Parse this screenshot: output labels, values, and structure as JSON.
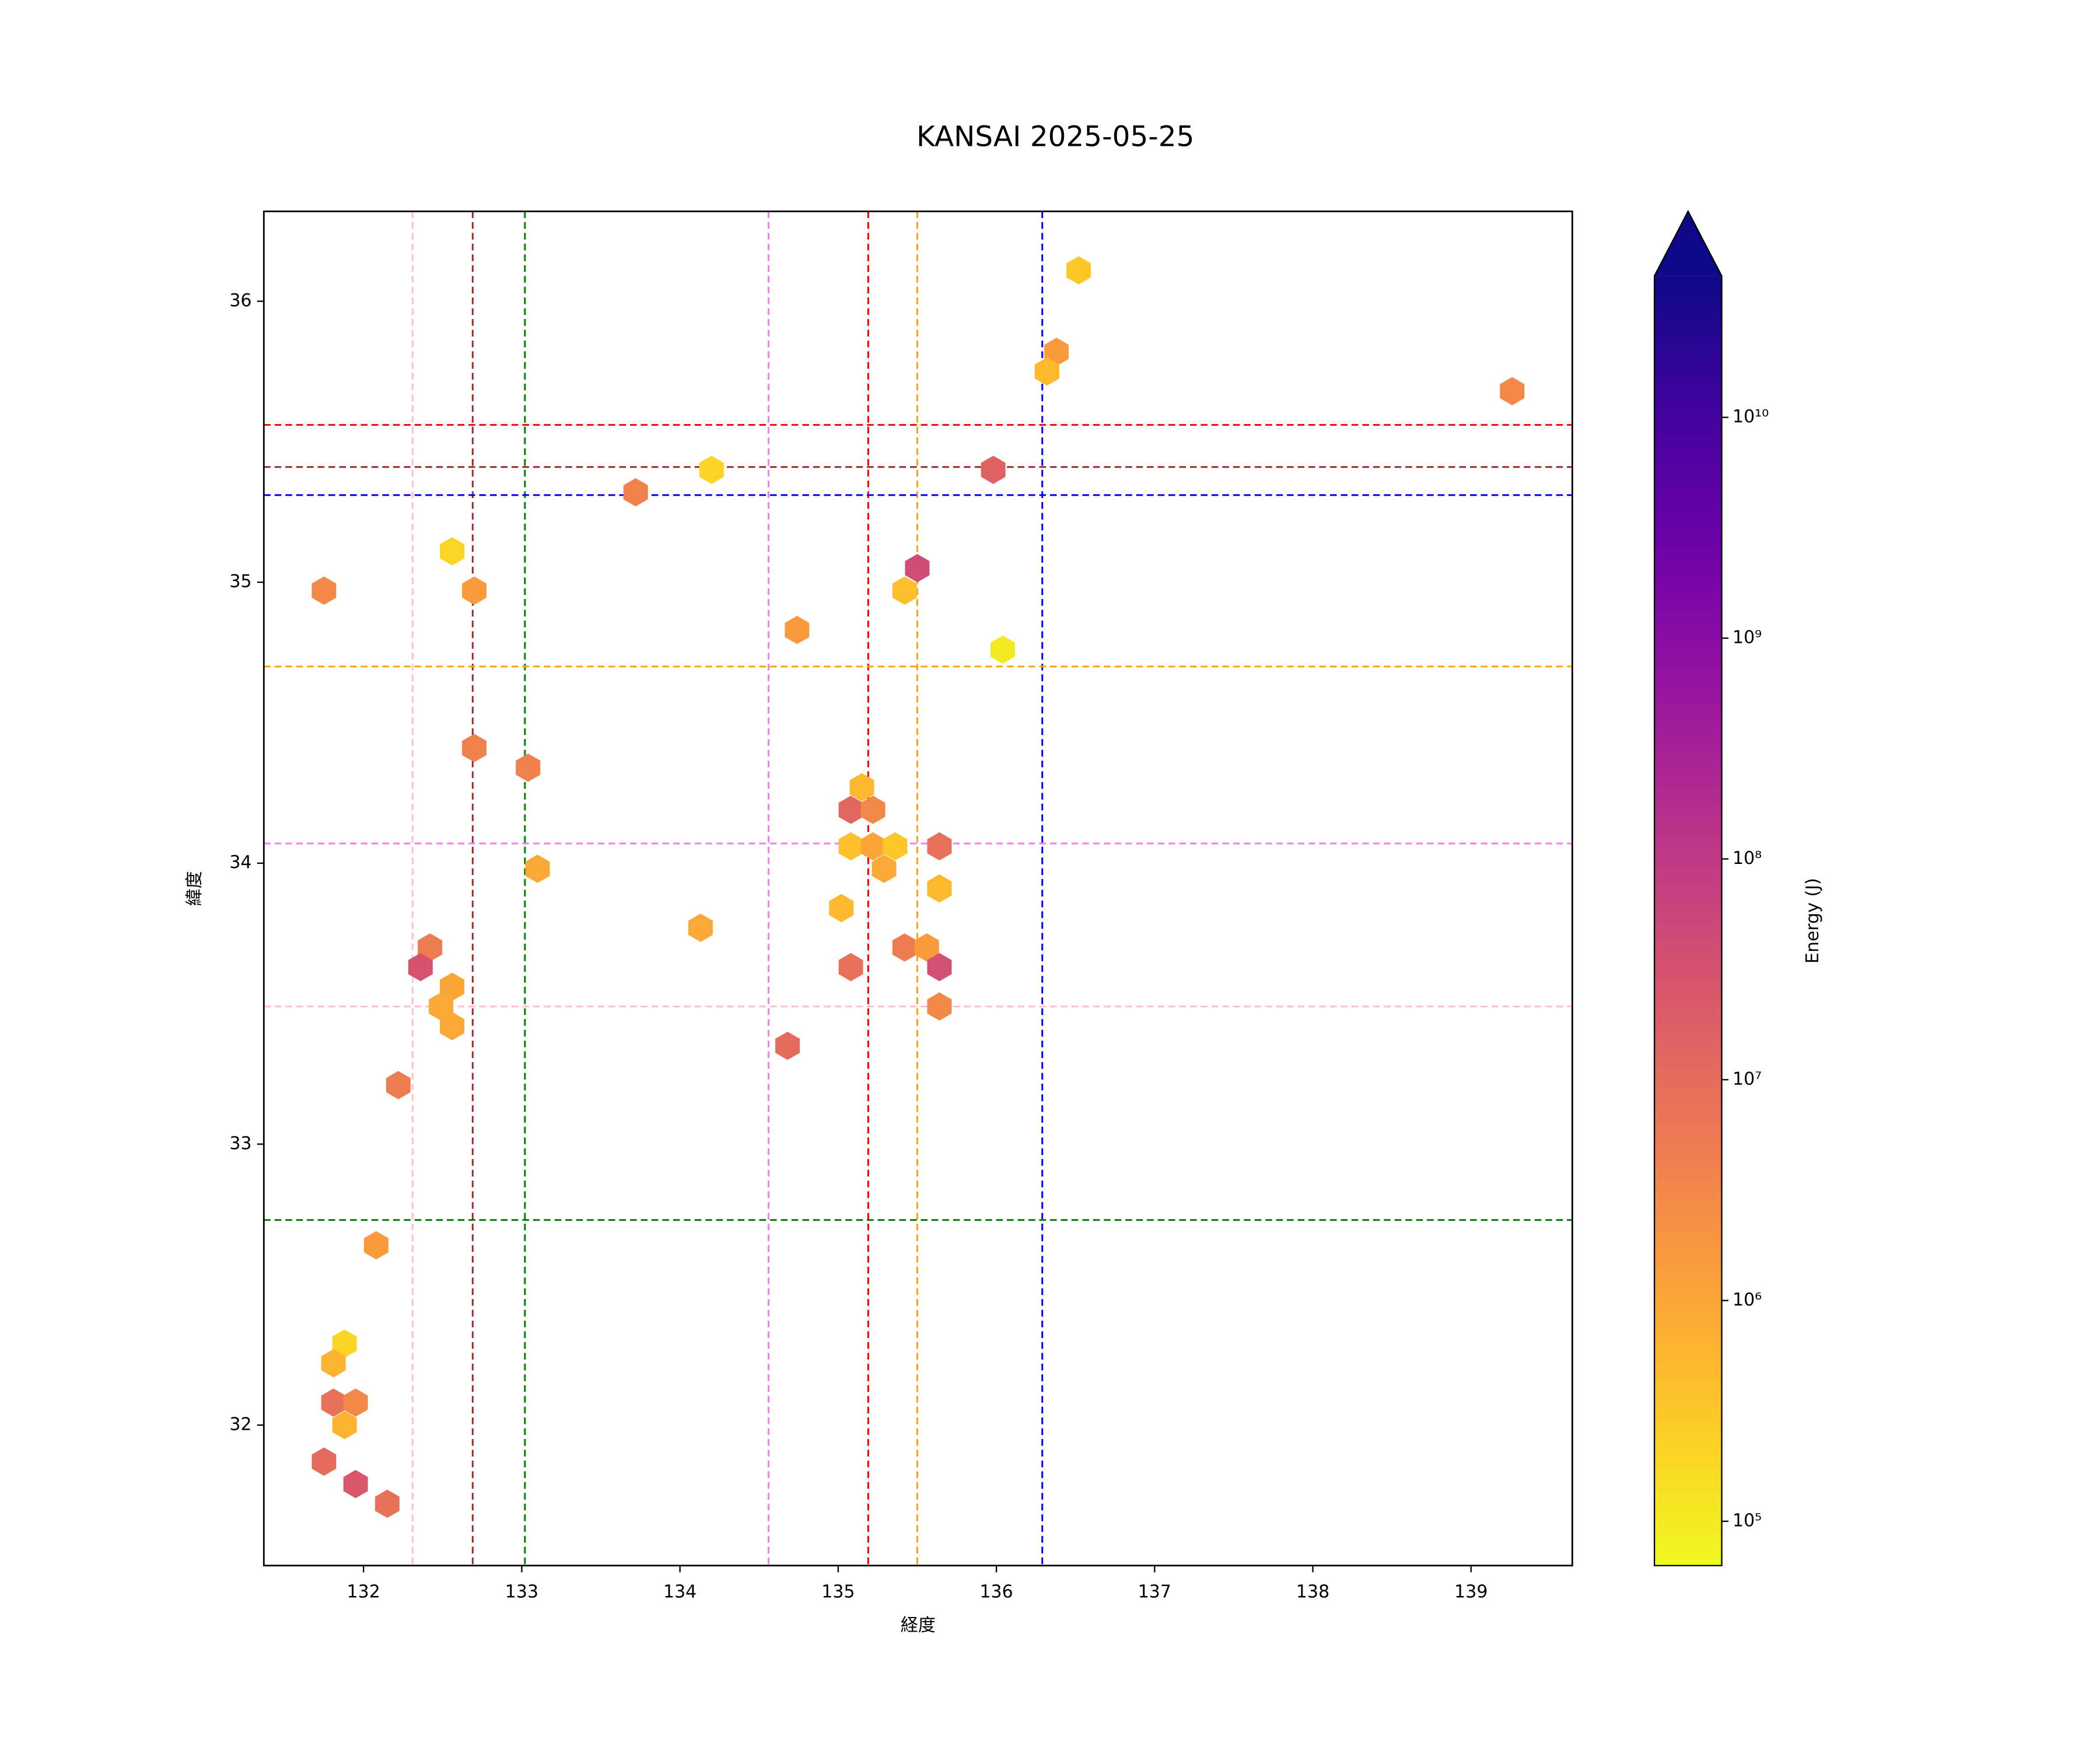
{
  "chart_data": {
    "type": "hexbin",
    "title": "KANSAI 2025-05-25",
    "xlabel": "経度",
    "ylabel": "緯度",
    "colorbar_label": "Energy (J)",
    "colormap": "plasma_r",
    "xlim": [
      131.37,
      139.64
    ],
    "ylim": [
      31.5,
      36.32
    ],
    "xticks": [
      132,
      133,
      134,
      135,
      136,
      137,
      138,
      139
    ],
    "yticks": [
      32,
      33,
      34,
      35,
      36
    ],
    "clim": [
      63000,
      43700000000
    ],
    "clog": true,
    "colorbar_extend": "max",
    "cticks": [
      {
        "value": 100000,
        "label": "10⁵"
      },
      {
        "value": 1000000,
        "label": "10⁶"
      },
      {
        "value": 10000000,
        "label": "10⁷"
      },
      {
        "value": 100000000,
        "label": "10⁸"
      },
      {
        "value": 1000000000,
        "label": "10⁹"
      },
      {
        "value": 10000000000,
        "label": "10¹⁰"
      }
    ],
    "x": [
      136.52,
      136.38,
      136.32,
      139.26,
      134.2,
      135.98,
      133.72,
      132.56,
      131.75,
      132.7,
      135.5,
      135.42,
      134.74,
      136.04,
      132.7,
      133.04,
      135.15,
      135.08,
      135.22,
      135.08,
      135.22,
      135.36,
      135.64,
      135.29,
      133.1,
      135.64,
      135.02,
      134.13,
      132.42,
      132.36,
      135.42,
      135.56,
      135.08,
      135.64,
      132.56,
      132.49,
      135.64,
      132.56,
      134.68,
      132.22,
      132.08,
      131.88,
      131.81,
      131.81,
      131.95,
      131.88,
      131.75,
      131.95,
      132.15
    ],
    "y": [
      36.11,
      35.82,
      35.75,
      35.68,
      35.4,
      35.4,
      35.32,
      35.11,
      34.97,
      34.97,
      35.05,
      34.97,
      34.83,
      34.76,
      34.41,
      34.34,
      34.27,
      34.19,
      34.19,
      34.06,
      34.06,
      34.06,
      34.06,
      33.98,
      33.98,
      33.91,
      33.84,
      33.77,
      33.7,
      33.63,
      33.7,
      33.7,
      33.63,
      33.63,
      33.56,
      33.49,
      33.49,
      33.42,
      33.35,
      33.21,
      32.64,
      32.29,
      32.22,
      32.08,
      32.08,
      32.0,
      31.87,
      31.79,
      31.72
    ],
    "values": [
      300000,
      1500000,
      500000,
      3000000,
      200000,
      15000000,
      4000000,
      200000,
      3000000,
      1500000,
      40000000,
      400000,
      1500000,
      100000,
      4000000,
      4000000,
      500000,
      12000000,
      3000000,
      400000,
      1000000,
      300000,
      8000000,
      900000,
      900000,
      500000,
      500000,
      900000,
      5000000,
      30000000,
      5000000,
      1500000,
      8000000,
      35000000,
      1000000,
      900000,
      3000000,
      900000,
      10000000,
      5000000,
      1500000,
      200000,
      600000,
      8000000,
      3000000,
      600000,
      10000000,
      25000000,
      8000000
    ],
    "vlines": [
      {
        "value": 132.31,
        "color": "pink"
      },
      {
        "value": 132.69,
        "color": "brown"
      },
      {
        "value": 133.02,
        "color": "green"
      },
      {
        "value": 134.56,
        "color": "violet"
      },
      {
        "value": 135.19,
        "color": "red"
      },
      {
        "value": 135.5,
        "color": "orange"
      },
      {
        "value": 136.29,
        "color": "blue"
      }
    ],
    "hlines": [
      {
        "value": 35.56,
        "color": "red"
      },
      {
        "value": 35.41,
        "color": "brown"
      },
      {
        "value": 35.31,
        "color": "blue"
      },
      {
        "value": 34.7,
        "color": "orange"
      },
      {
        "value": 34.07,
        "color": "violet"
      },
      {
        "value": 33.49,
        "color": "pink"
      },
      {
        "value": 32.73,
        "color": "green"
      }
    ]
  }
}
